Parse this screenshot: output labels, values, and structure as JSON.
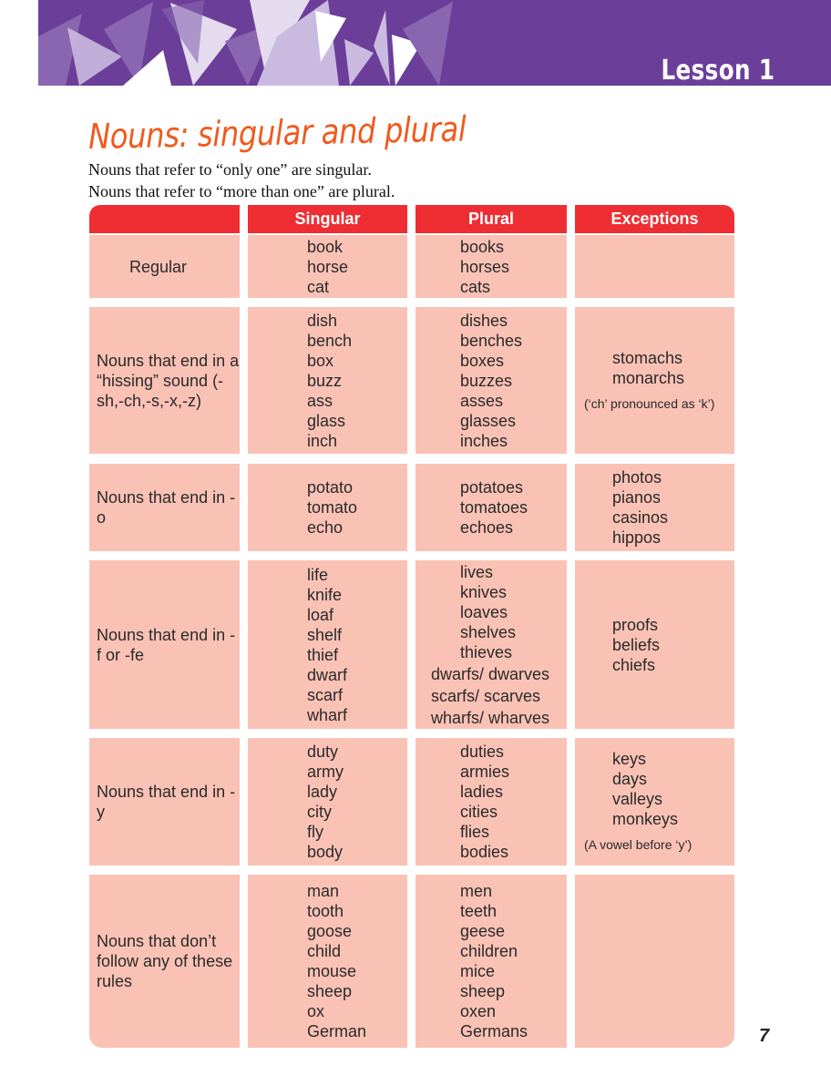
{
  "header": {
    "lesson": "Lesson 1",
    "banner_color": "#6b3f99"
  },
  "title": "Nouns: singular and plural",
  "intro": [
    "Nouns that refer to “only one” are singular.",
    "Nouns that refer to “more than one” are plural."
  ],
  "table": {
    "columns": [
      "",
      "Singular",
      "Plural",
      "Exceptions"
    ],
    "header_color": "#ee2e33",
    "cell_color": "#fac2b5",
    "rows": [
      {
        "category": "Regular",
        "singular": [
          "book",
          "horse",
          "cat"
        ],
        "plural": [
          "books",
          "horses",
          "cats"
        ],
        "exceptions": [],
        "note": ""
      },
      {
        "category": "Nouns that end in a “hissing” sound (-sh,-ch,-s,-x,-z)",
        "singular": [
          "dish",
          "bench",
          "box",
          "buzz",
          "ass",
          "glass",
          "inch"
        ],
        "plural": [
          "dishes",
          "benches",
          "boxes",
          "buzzes",
          "asses",
          "glasses",
          "inches"
        ],
        "exceptions": [
          "stomachs",
          "monarchs"
        ],
        "note": "(‘ch’ pronounced as ‘k’)"
      },
      {
        "category": "Nouns that end in -o",
        "singular": [
          "potato",
          "tomato",
          "echo"
        ],
        "plural": [
          "potatoes",
          "tomatoes",
          "echoes"
        ],
        "exceptions": [
          "photos",
          "pianos",
          "casinos",
          "hippos"
        ],
        "note": ""
      },
      {
        "category": "Nouns that end in -f or -fe",
        "singular": [
          "life",
          "knife",
          "loaf",
          "shelf",
          "thief",
          "dwarf",
          "scarf",
          "wharf"
        ],
        "plural": [
          "lives",
          "knives",
          "loaves",
          "shelves",
          "thieves",
          "dwarfs/ dwarves",
          "scarfs/ scarves",
          "wharfs/ wharves"
        ],
        "exceptions": [
          "proofs",
          "beliefs",
          "chiefs"
        ],
        "note": ""
      },
      {
        "category": "Nouns that end in -y",
        "singular": [
          "duty",
          "army",
          "lady",
          "city",
          "fly",
          "body"
        ],
        "plural": [
          "duties",
          "armies",
          "ladies",
          "cities",
          "flies",
          "bodies"
        ],
        "exceptions": [
          "keys",
          "days",
          "valleys",
          "monkeys"
        ],
        "note": "(A vowel before ‘y’)"
      },
      {
        "category": "Nouns that don’t follow any of these rules",
        "singular": [
          "man",
          "tooth",
          "goose",
          "child",
          "mouse",
          "sheep",
          "ox",
          "German"
        ],
        "plural": [
          "men",
          "teeth",
          "geese",
          "children",
          "mice",
          "sheep",
          "oxen",
          "Germans"
        ],
        "exceptions": [],
        "note": ""
      }
    ]
  },
  "page_number": "7"
}
